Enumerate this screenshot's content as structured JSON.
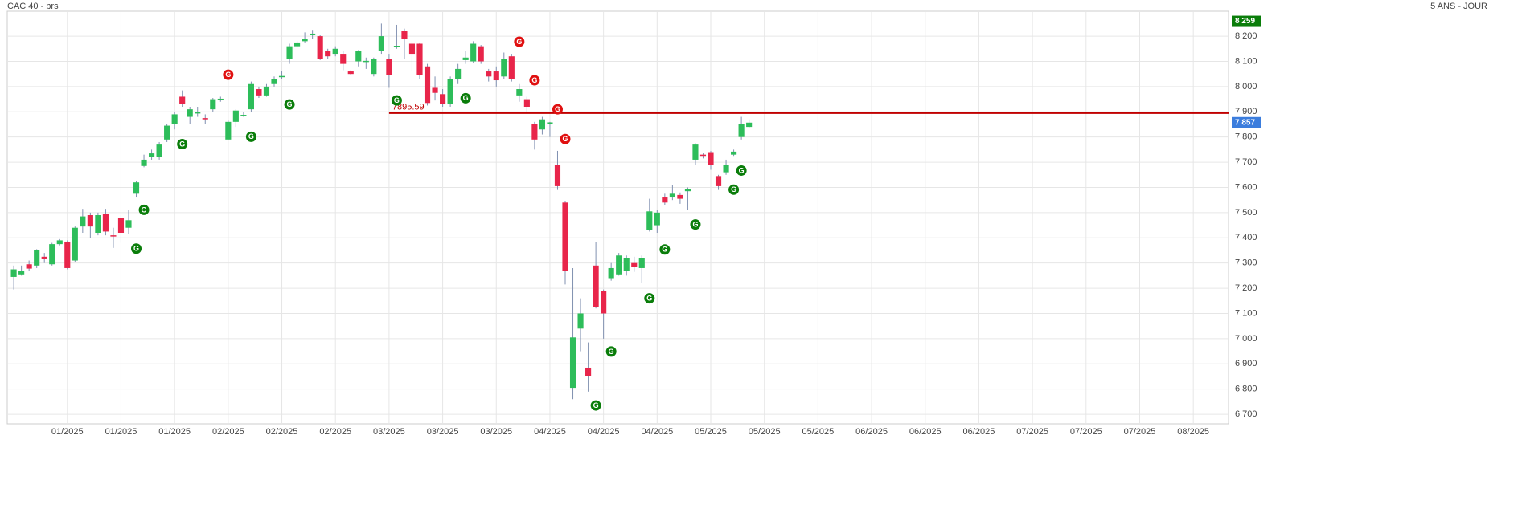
{
  "chart_data": {
    "type": "candlestick",
    "title": "CAC 40 - brs",
    "subtitle": "5 ANS - JOUR",
    "open": [
      7245,
      7255,
      7295,
      7290,
      7325,
      7295,
      7375,
      7385,
      7310,
      7445,
      7490,
      7420,
      7495,
      7410,
      7480,
      7440,
      7575,
      7685,
      7720,
      7720,
      7790,
      7850,
      7960,
      7880,
      7895,
      7875,
      7910,
      7950,
      7790,
      7860,
      7885,
      7910,
      7990,
      7965,
      8010,
      8040,
      8110,
      8160,
      8180,
      8205,
      8200,
      8140,
      8130,
      8130,
      8060,
      8100,
      8100,
      8050,
      8140,
      8110,
      8160,
      8220,
      8170,
      8170,
      8080,
      7995,
      7970,
      7930,
      8030,
      8105,
      8100,
      8160,
      8060,
      8060,
      8040,
      8120,
      7965,
      7950,
      7850,
      7830,
      7850,
      7690,
      7540,
      6805,
      7040,
      6885,
      7290,
      7190,
      7240,
      7255,
      7270,
      7300,
      7280,
      7430,
      7450,
      7560,
      7560,
      7570,
      7585,
      7710,
      7730,
      7740,
      7645,
      7660,
      7730,
      7800,
      7840
    ],
    "high": [
      7290,
      7290,
      7310,
      7355,
      7340,
      7380,
      7395,
      7390,
      7445,
      7515,
      7500,
      7500,
      7515,
      7440,
      7490,
      7510,
      7625,
      7730,
      7750,
      7780,
      7850,
      7900,
      7985,
      7920,
      7920,
      7890,
      7955,
      7960,
      7865,
      7910,
      7900,
      8020,
      8000,
      8010,
      8040,
      8060,
      8170,
      8180,
      8215,
      8225,
      8205,
      8150,
      8160,
      8140,
      8065,
      8145,
      8115,
      8115,
      8250,
      8130,
      8245,
      8230,
      8180,
      8175,
      8090,
      8040,
      7990,
      8040,
      8090,
      8140,
      8180,
      8165,
      8070,
      8080,
      8135,
      8130,
      8010,
      7960,
      7860,
      7880,
      7860,
      7745,
      7545,
      7280,
      7160,
      6985,
      7385,
      7195,
      7300,
      7340,
      7330,
      7325,
      7330,
      7555,
      7510,
      7575,
      7610,
      7580,
      7600,
      7775,
      7735,
      7745,
      7650,
      7710,
      7750,
      7880,
      7870
    ],
    "low": [
      7195,
      7250,
      7270,
      7280,
      7300,
      7290,
      7370,
      7275,
      7305,
      7420,
      7400,
      7410,
      7410,
      7360,
      7380,
      7415,
      7560,
      7680,
      7710,
      7710,
      7780,
      7830,
      7920,
      7850,
      7880,
      7850,
      7900,
      7940,
      7790,
      7840,
      7880,
      7900,
      7955,
      7960,
      8000,
      8030,
      8090,
      8155,
      8175,
      8190,
      8105,
      8110,
      8120,
      8065,
      8045,
      8080,
      8070,
      8040,
      8130,
      7995,
      8150,
      8110,
      8060,
      8030,
      7925,
      7945,
      7920,
      7920,
      8010,
      8090,
      8095,
      8090,
      8020,
      8000,
      8030,
      8020,
      7940,
      7895,
      7750,
      7810,
      7800,
      7590,
      7215,
      6760,
      6950,
      6790,
      7120,
      7000,
      7230,
      7250,
      7250,
      7265,
      7220,
      7425,
      7420,
      7530,
      7550,
      7535,
      7510,
      7690,
      7715,
      7670,
      7590,
      7650,
      7725,
      7790,
      7835
    ],
    "close": [
      7275,
      7270,
      7278,
      7350,
      7315,
      7375,
      7390,
      7280,
      7440,
      7485,
      7445,
      7490,
      7425,
      7408,
      7420,
      7470,
      7620,
      7710,
      7735,
      7770,
      7845,
      7890,
      7930,
      7910,
      7898,
      7870,
      7950,
      7952,
      7860,
      7905,
      7888,
      8010,
      7965,
      8000,
      8030,
      8042,
      8160,
      8175,
      8190,
      8210,
      8110,
      8120,
      8150,
      8090,
      8050,
      8140,
      8102,
      8110,
      8200,
      8045,
      8162,
      8190,
      8130,
      8045,
      7935,
      7975,
      7930,
      8030,
      8070,
      8115,
      8170,
      8100,
      8040,
      8025,
      8110,
      8030,
      7990,
      7920,
      7790,
      7870,
      7858,
      7605,
      7270,
      7005,
      7100,
      6850,
      7125,
      7100,
      7280,
      7330,
      7320,
      7285,
      7320,
      7505,
      7500,
      7540,
      7575,
      7555,
      7595,
      7770,
      7725,
      7690,
      7605,
      7690,
      7742,
      7850,
      7857
    ],
    "up_color": "#2dbd5a",
    "down_color": "#e8254a",
    "xlim": [
      -0.85,
      158.6
    ],
    "xticks": [
      {
        "value": 7,
        "label": "01/2025"
      },
      {
        "value": 14,
        "label": "01/2025"
      },
      {
        "value": 21,
        "label": "01/2025"
      },
      {
        "value": 28,
        "label": "02/2025"
      },
      {
        "value": 35,
        "label": "02/2025"
      },
      {
        "value": 42,
        "label": "02/2025"
      },
      {
        "value": 49,
        "label": "03/2025"
      },
      {
        "value": 56,
        "label": "03/2025"
      },
      {
        "value": 63,
        "label": "03/2025"
      },
      {
        "value": 70,
        "label": "04/2025"
      },
      {
        "value": 77,
        "label": "04/2025"
      },
      {
        "value": 84,
        "label": "04/2025"
      },
      {
        "value": 91,
        "label": "05/2025"
      },
      {
        "value": 98,
        "label": "05/2025"
      },
      {
        "value": 105,
        "label": "05/2025"
      },
      {
        "value": 112,
        "label": "06/2025"
      },
      {
        "value": 119,
        "label": "06/2025"
      },
      {
        "value": 126,
        "label": "06/2025"
      },
      {
        "value": 133,
        "label": "07/2025"
      },
      {
        "value": 140,
        "label": "07/2025"
      },
      {
        "value": 147,
        "label": "07/2025"
      },
      {
        "value": 154,
        "label": "08/2025"
      }
    ],
    "ylim": [
      6662,
      8299
    ],
    "yticks": [
      {
        "value": 6700,
        "label": "6 700"
      },
      {
        "value": 6800,
        "label": "6 800"
      },
      {
        "value": 6900,
        "label": "6 900"
      },
      {
        "value": 7000,
        "label": "7 000"
      },
      {
        "value": 7100,
        "label": "7 100"
      },
      {
        "value": 7200,
        "label": "7 200"
      },
      {
        "value": 7300,
        "label": "7 300"
      },
      {
        "value": 7400,
        "label": "7 400"
      },
      {
        "value": 7500,
        "label": "7 500"
      },
      {
        "value": 7600,
        "label": "7 600"
      },
      {
        "value": 7700,
        "label": "7 700"
      },
      {
        "value": 7800,
        "label": "7 800"
      },
      {
        "value": 7900,
        "label": "7 900"
      },
      {
        "value": 8000,
        "label": "8 000"
      },
      {
        "value": 8100,
        "label": "8 100"
      },
      {
        "value": 8200,
        "label": "8 200"
      }
    ],
    "grid": true,
    "hline": {
      "value": 7895.59,
      "label": "7895.59",
      "start": 49,
      "color": "#c00000"
    },
    "price_tags": [
      {
        "value": 8259,
        "label": "8 259",
        "color": "#0a7d0a"
      },
      {
        "value": 7857,
        "label": "7 857",
        "color": "#3b7ddd"
      }
    ],
    "signals": [
      {
        "x": 16,
        "value": 7357,
        "label": "G",
        "color": "#0a7d0a"
      },
      {
        "x": 17,
        "value": 7511,
        "label": "G",
        "color": "#0a7d0a"
      },
      {
        "x": 22,
        "value": 7772,
        "label": "G",
        "color": "#0a7d0a"
      },
      {
        "x": 31,
        "value": 7801,
        "label": "G",
        "color": "#0a7d0a"
      },
      {
        "x": 36,
        "value": 7929,
        "label": "G",
        "color": "#0a7d0a"
      },
      {
        "x": 50,
        "value": 7945,
        "label": "G",
        "color": "#0a7d0a"
      },
      {
        "x": 59,
        "value": 7954,
        "label": "G",
        "color": "#0a7d0a"
      },
      {
        "x": 76,
        "value": 6735,
        "label": "G",
        "color": "#0a7d0a"
      },
      {
        "x": 78,
        "value": 6949,
        "label": "G",
        "color": "#0a7d0a"
      },
      {
        "x": 83,
        "value": 7160,
        "label": "G",
        "color": "#0a7d0a"
      },
      {
        "x": 85,
        "value": 7354,
        "label": "G",
        "color": "#0a7d0a"
      },
      {
        "x": 89,
        "value": 7453,
        "label": "G",
        "color": "#0a7d0a"
      },
      {
        "x": 94,
        "value": 7591,
        "label": "G",
        "color": "#0a7d0a"
      },
      {
        "x": 95,
        "value": 7667,
        "label": "G",
        "color": "#0a7d0a"
      },
      {
        "x": 28,
        "value": 8047,
        "label": "G",
        "color": "#e01010"
      },
      {
        "x": 66,
        "value": 8178,
        "label": "G",
        "color": "#e01010"
      },
      {
        "x": 68,
        "value": 8025,
        "label": "G",
        "color": "#e01010"
      },
      {
        "x": 71,
        "value": 7910,
        "label": "G",
        "color": "#e01010"
      },
      {
        "x": 72,
        "value": 7792,
        "label": "G",
        "color": "#e01010"
      }
    ]
  }
}
